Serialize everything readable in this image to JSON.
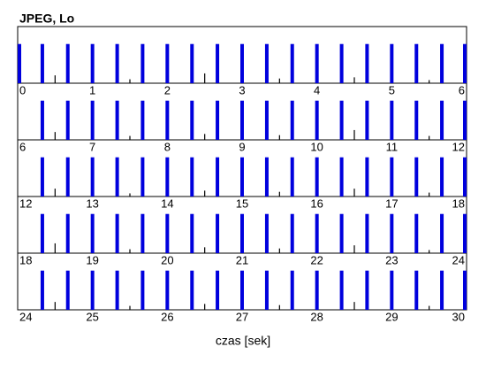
{
  "chart_data": {
    "type": "timeline",
    "title": "JPEG, Lo",
    "xlabel": "czas [sek]",
    "ylim": [
      0,
      1.4
    ],
    "panels": [
      {
        "xlim": [
          0,
          6
        ],
        "xticks": [
          0,
          1,
          2,
          3,
          4,
          5,
          6
        ]
      },
      {
        "xlim": [
          6,
          12
        ],
        "xticks": [
          6,
          7,
          8,
          9,
          10,
          11,
          12
        ]
      },
      {
        "xlim": [
          12,
          18
        ],
        "xticks": [
          12,
          13,
          14,
          15,
          16,
          17,
          18
        ]
      },
      {
        "xlim": [
          18,
          24
        ],
        "xticks": [
          18,
          19,
          20,
          21,
          22,
          23,
          24
        ]
      },
      {
        "xlim": [
          24,
          30
        ],
        "xticks": [
          24,
          25,
          26,
          27,
          28,
          29,
          30
        ]
      }
    ],
    "series": [
      {
        "color": "#0000dd",
        "x": [
          0,
          0.33,
          0.67,
          1,
          1.33,
          1.67,
          2,
          2.33,
          2.67,
          3,
          3.33,
          3.67,
          4,
          4.33,
          4.67,
          5,
          5.33,
          5.67,
          6,
          6.33,
          6.67,
          7,
          7.33,
          7.67,
          8,
          8.33,
          8.67,
          9,
          9.33,
          9.67,
          10,
          10.33,
          10.67,
          11,
          11.33,
          11.67,
          12,
          12.33,
          12.67,
          13,
          13.33,
          13.67,
          14,
          14.33,
          14.67,
          15,
          15.33,
          15.67,
          16,
          16.33,
          16.67,
          17,
          17.33,
          17.67,
          18,
          18.33,
          18.67,
          19,
          19.33,
          19.67,
          20,
          20.33,
          20.67,
          21,
          21.33,
          21.67,
          22,
          22.33,
          22.67,
          23,
          23.33,
          23.67,
          24,
          24.33,
          24.67,
          25,
          25.33,
          25.67,
          26,
          26.33,
          26.67,
          27,
          27.33,
          27.67,
          28,
          28.33,
          28.67,
          29,
          29.33,
          29.67,
          30
        ],
        "values": [
          1,
          1,
          1,
          1,
          1,
          1,
          1,
          1,
          1,
          1,
          1,
          1,
          1,
          1,
          1,
          1,
          1,
          1,
          1,
          1,
          1,
          1,
          1,
          1,
          1,
          1,
          1,
          1,
          1,
          1,
          1,
          1,
          1,
          1,
          1,
          1,
          1,
          1,
          1,
          1,
          1,
          1,
          1,
          1,
          1,
          1,
          1,
          1,
          1,
          1,
          1,
          1,
          1,
          1,
          1,
          1,
          1,
          1,
          1,
          1,
          1,
          1,
          1,
          1,
          1,
          1,
          1,
          1,
          1,
          1,
          1,
          1,
          1,
          1,
          1,
          1,
          1,
          1,
          1,
          1,
          1,
          1,
          1,
          1,
          1,
          1,
          1,
          1,
          1,
          1,
          1
        ]
      },
      {
        "color": "#000000",
        "x": [
          0.5,
          1.5,
          2.5,
          3.5,
          4.5,
          5.5,
          6.5,
          7.5,
          8.5,
          9.5,
          10.5,
          11.5,
          12.5,
          13.5,
          14.5,
          15.5,
          16.5,
          17.5,
          18.5,
          19.5,
          20.5,
          21.5,
          22.5,
          23.5,
          24.5,
          25.5,
          26.5,
          27.5,
          28.5,
          29.5
        ],
        "values": [
          0.2,
          0.1,
          0.25,
          0.12,
          0.15,
          0.08,
          0.2,
          0.1,
          0.15,
          0.12,
          0.25,
          0.1,
          0.2,
          0.08,
          0.15,
          0.12,
          0.2,
          0.1,
          0.25,
          0.1,
          0.15,
          0.12,
          0.2,
          0.08,
          0.2,
          0.1,
          0.15,
          0.12,
          0.2,
          0.1
        ]
      }
    ]
  }
}
